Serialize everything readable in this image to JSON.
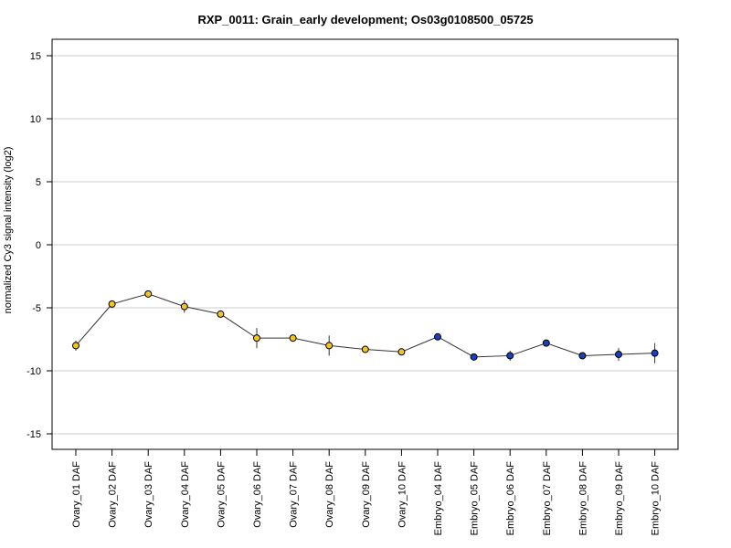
{
  "chart_data": {
    "type": "line",
    "title": "RXP_0011: Grain_early development; Os03g0108500_05725",
    "xlabel": "",
    "ylabel": "normalized Cy3 signal intensity (log2)",
    "ylim": [
      -16,
      16
    ],
    "yticks": [
      15,
      10,
      5,
      0,
      -5,
      -10,
      -15
    ],
    "grid": "horizontal",
    "legend": "none",
    "categories": [
      "Ovary_01 DAF",
      "Ovary_02 DAF",
      "Ovary_03 DAF",
      "Ovary_04 DAF",
      "Ovary_05 DAF",
      "Ovary_06 DAF",
      "Ovary_07 DAF",
      "Ovary_08 DAF",
      "Ovary_09 DAF",
      "Ovary_10 DAF",
      "Embryo_04 DAF",
      "Embryo_05 DAF",
      "Embryo_06 DAF",
      "Embryo_07 DAF",
      "Embryo_08 DAF",
      "Embryo_09 DAF",
      "Embryo_10 DAF"
    ],
    "series": [
      {
        "values": [
          -8.0,
          -4.7,
          -3.9,
          -4.9,
          -5.5,
          -7.4,
          -7.4,
          -8.0,
          -8.3,
          -8.5,
          -7.3,
          -8.9,
          -8.8,
          -7.8,
          -8.8,
          -8.7,
          -8.6
        ],
        "error": [
          0.4,
          0.2,
          0.15,
          0.5,
          0.15,
          0.8,
          0.2,
          0.8,
          0.15,
          0.15,
          0.15,
          0.15,
          0.4,
          0.15,
          0.15,
          0.5,
          0.8
        ],
        "point_colors": [
          "#f2c61f",
          "#f2c61f",
          "#f2c61f",
          "#f2c61f",
          "#f2c61f",
          "#f2c61f",
          "#f2c61f",
          "#f2c61f",
          "#f2c61f",
          "#f2c61f",
          "#1a3fbf",
          "#1a3fbf",
          "#1a3fbf",
          "#1a3fbf",
          "#1a3fbf",
          "#1a3fbf",
          "#1a3fbf"
        ]
      }
    ],
    "colors": {
      "ovary": "#f2c61f",
      "embryo": "#1a3fbf",
      "line": "#333333",
      "grid": "#cccccc"
    }
  }
}
